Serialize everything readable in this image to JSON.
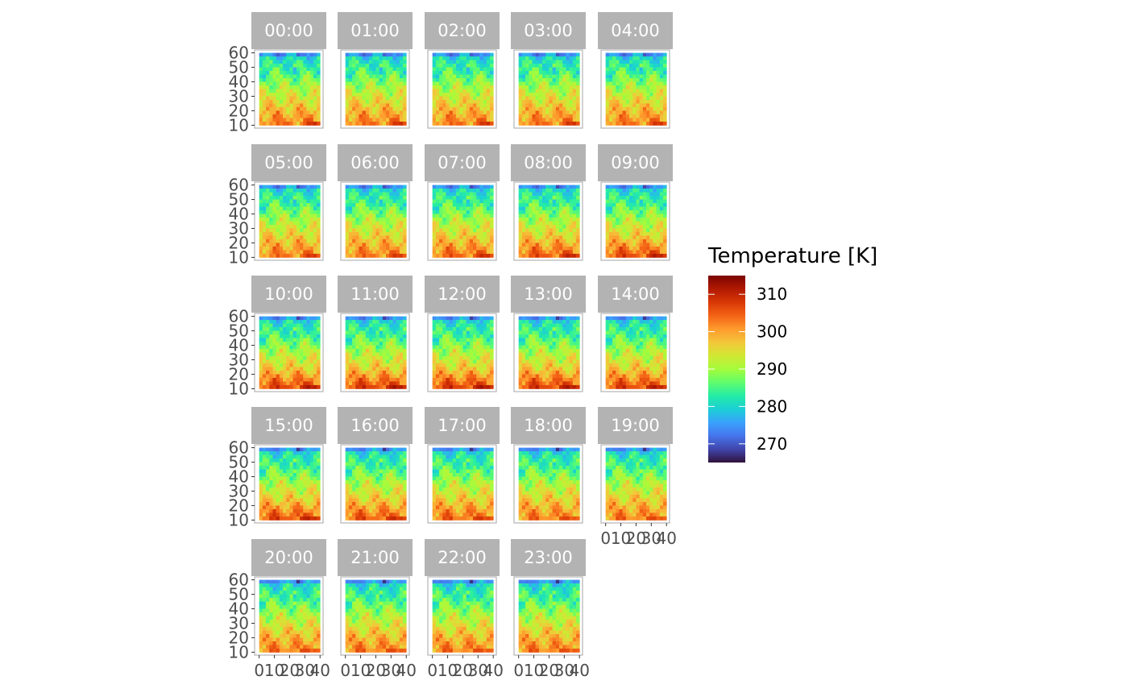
{
  "chart_data": {
    "type": "heatmap",
    "panels": [
      "00:00",
      "01:00",
      "02:00",
      "03:00",
      "04:00",
      "05:00",
      "06:00",
      "07:00",
      "08:00",
      "09:00",
      "10:00",
      "11:00",
      "12:00",
      "13:00",
      "14:00",
      "15:00",
      "16:00",
      "17:00",
      "18:00",
      "19:00",
      "20:00",
      "21:00",
      "22:00",
      "23:00"
    ],
    "x_ticks": [
      "0",
      "10",
      "20",
      "30",
      "40"
    ],
    "y_ticks": [
      "10",
      "20",
      "30",
      "40",
      "50",
      "60"
    ],
    "xlim": [
      -3,
      42
    ],
    "ylim": [
      8,
      62
    ],
    "legend": {
      "title": "Temperature [K]",
      "ticks": [
        310,
        300,
        290,
        280,
        270
      ],
      "range": [
        265,
        315
      ],
      "placement": "right"
    },
    "colors": {
      "strip": "#b3b3b3",
      "panel_border": "#b3b3b3",
      "colormap": [
        "#30123b",
        "#4145ab",
        "#4675ed",
        "#39a2fc",
        "#1bcfd4",
        "#24eca6",
        "#61fc6c",
        "#a4fc3b",
        "#d1e834",
        "#f3c63a",
        "#fe9b2d",
        "#f36315",
        "#d93806",
        "#b11901",
        "#7a0403"
      ]
    }
  }
}
